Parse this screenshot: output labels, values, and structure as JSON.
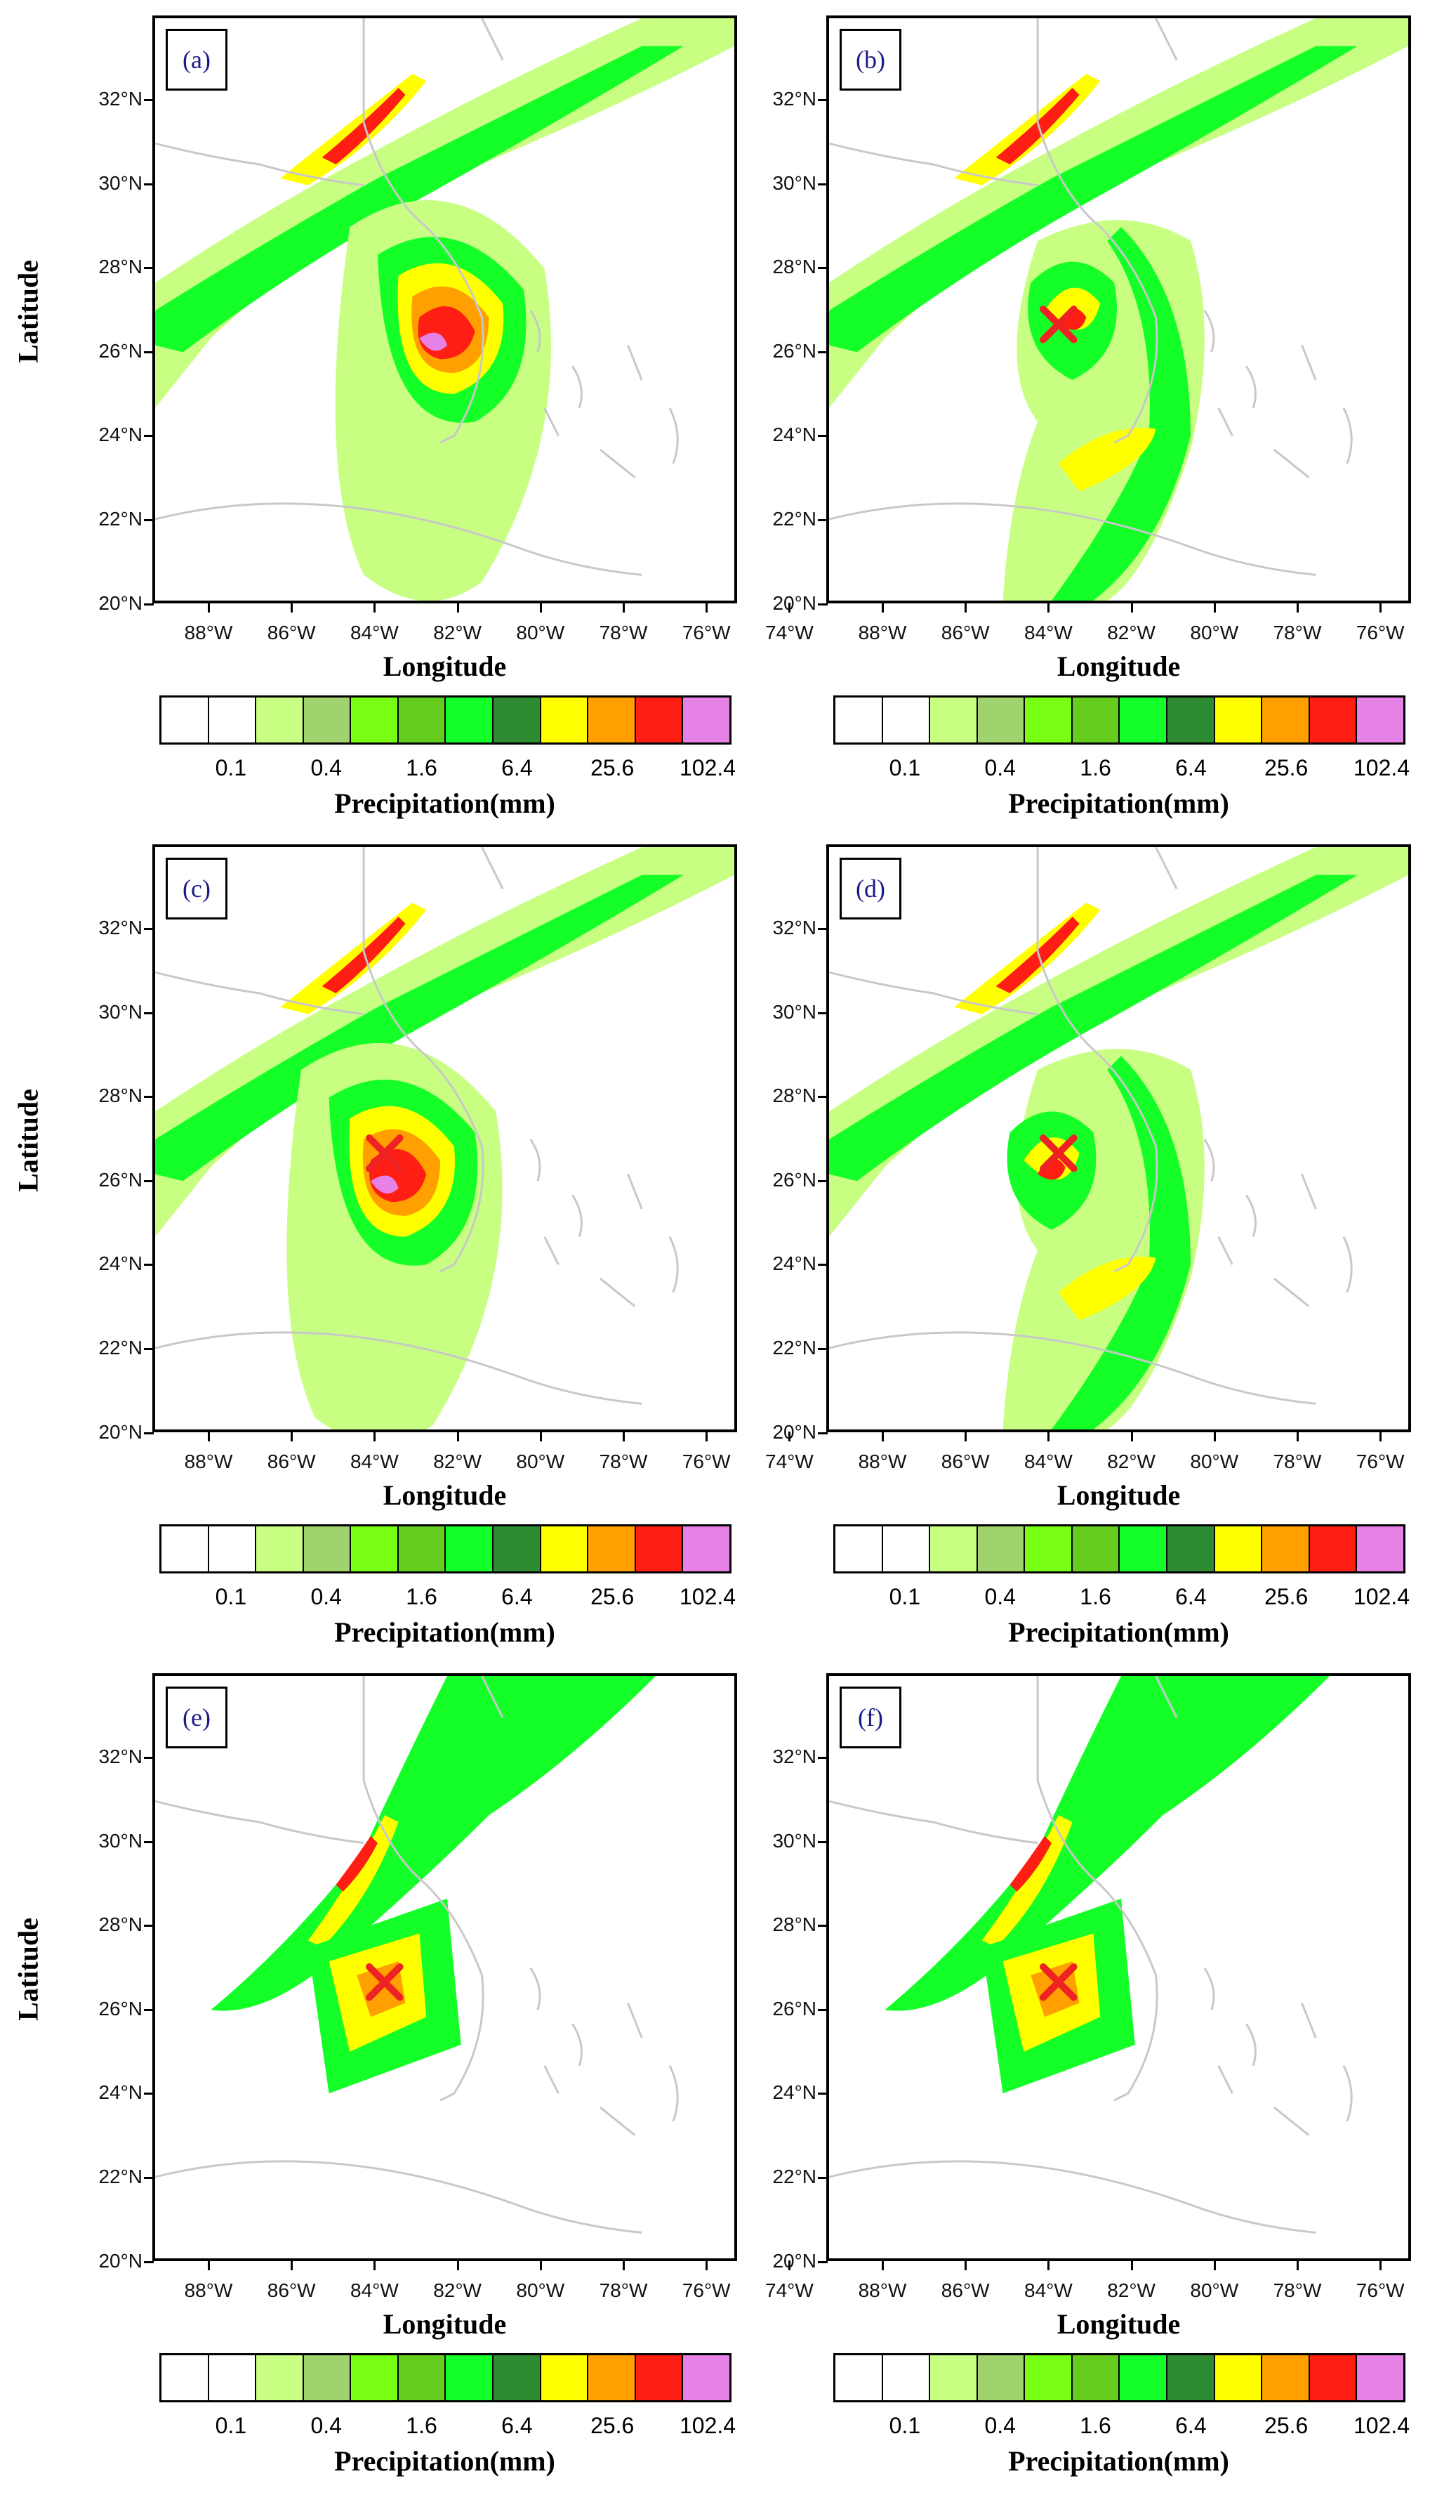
{
  "figure": {
    "y_axis_label": "Latitude",
    "x_axis_label": "Longitude",
    "colorbar_title": "Precipitation(mm)",
    "lat_ticks": [
      "32°N",
      "30°N",
      "28°N",
      "26°N",
      "24°N",
      "22°N",
      "20°N"
    ],
    "lon_ticks": [
      "88°W",
      "86°W",
      "84°W",
      "82°W",
      "80°W",
      "78°W",
      "76°W",
      "74°W"
    ],
    "colorbar_ticks": [
      "0.1",
      "0.4",
      "1.6",
      "6.4",
      "25.6",
      "102.4"
    ],
    "colorbar_colors": [
      "#ffffff",
      "#ffffff",
      "#c8ff82",
      "#a0d26e",
      "#78ff14",
      "#64cd1e",
      "#14ff28",
      "#2d8c32",
      "#ffff00",
      "#ffa000",
      "#ff1e14",
      "#e682e6"
    ],
    "storm_marker_color": "#ee2222",
    "coastline_color": "#c8c8c8"
  },
  "panels": [
    {
      "label": "(a)",
      "has_marker": false
    },
    {
      "label": "(b)",
      "has_marker": true
    },
    {
      "label": "(c)",
      "has_marker": true
    },
    {
      "label": "(d)",
      "has_marker": true
    },
    {
      "label": "(e)",
      "has_marker": true
    },
    {
      "label": "(f)",
      "has_marker": true
    }
  ]
}
